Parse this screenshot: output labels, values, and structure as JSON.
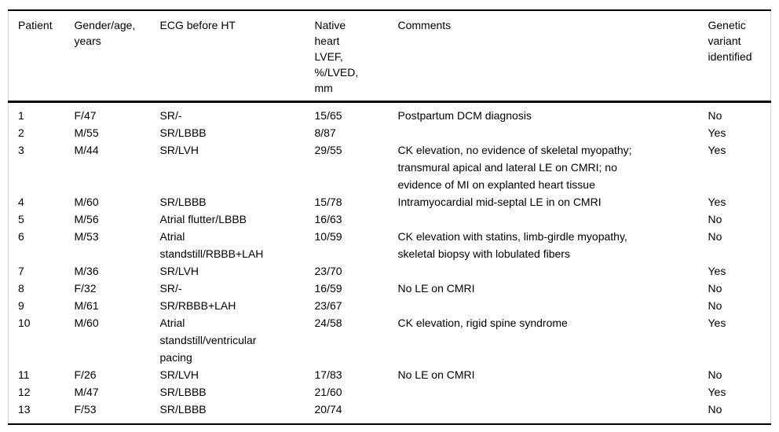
{
  "table": {
    "columns": [
      {
        "key": "patient",
        "label": "Patient"
      },
      {
        "key": "gender",
        "label": "Gender/age,\nyears"
      },
      {
        "key": "ecg",
        "label": "ECG before HT"
      },
      {
        "key": "lvef",
        "label": "Native\nheart\nLVEF,\n%/LVED,\nmm"
      },
      {
        "key": "comments",
        "label": "Comments"
      },
      {
        "key": "genetic",
        "label": "Genetic\nvariant\nidentified"
      }
    ],
    "rows": [
      [
        "1",
        "F/47",
        "SR/-",
        "15/65",
        "Postpartum DCM diagnosis",
        "No"
      ],
      [
        "2",
        "M/55",
        "SR/LBBB",
        "8/87",
        "",
        "Yes"
      ],
      [
        "3",
        "M/44",
        "SR/LVH",
        "29/55",
        "CK elevation, no evidence of skeletal myopathy;\ntransmural apical and lateral LE on CMRI; no\nevidence of MI on explanted heart tissue",
        "Yes"
      ],
      [
        "4",
        "M/60",
        "SR/LBBB",
        "15/78",
        "Intramyocardial mid-septal LE in on CMRI",
        "Yes"
      ],
      [
        "5",
        "M/56",
        "Atrial flutter/LBBB",
        "16/63",
        "",
        "No"
      ],
      [
        "6",
        "M/53",
        "Atrial\nstandstill/RBBB+LAH",
        "10/59",
        "CK elevation with statins, limb-girdle myopathy,\nskeletal biopsy with lobulated fibers",
        "No"
      ],
      [
        "7",
        "M/36",
        "SR/LVH",
        "23/70",
        "",
        "Yes"
      ],
      [
        "8",
        "F/32",
        "SR/-",
        "16/59",
        "No LE on CMRI",
        "No"
      ],
      [
        "9",
        "M/61",
        "SR/RBBB+LAH",
        "23/67",
        "",
        "No"
      ],
      [
        "10",
        "M/60",
        "Atrial\nstandstill/ventricular\npacing",
        "24/58",
        "CK elevation, rigid spine syndrome",
        "Yes"
      ],
      [
        "11",
        "F/26",
        "SR/LVH",
        "17/83",
        "No LE on CMRI",
        "No"
      ],
      [
        "12",
        "M/47",
        "SR/LBBB",
        "21/60",
        "",
        "Yes"
      ],
      [
        "13",
        "F/53",
        "SR/LBBB",
        "20/74",
        "",
        "No"
      ]
    ]
  },
  "colors": {
    "rule": "#000000",
    "side_edge": "#d8d8d8",
    "text": "#000000",
    "background": "#ffffff"
  }
}
